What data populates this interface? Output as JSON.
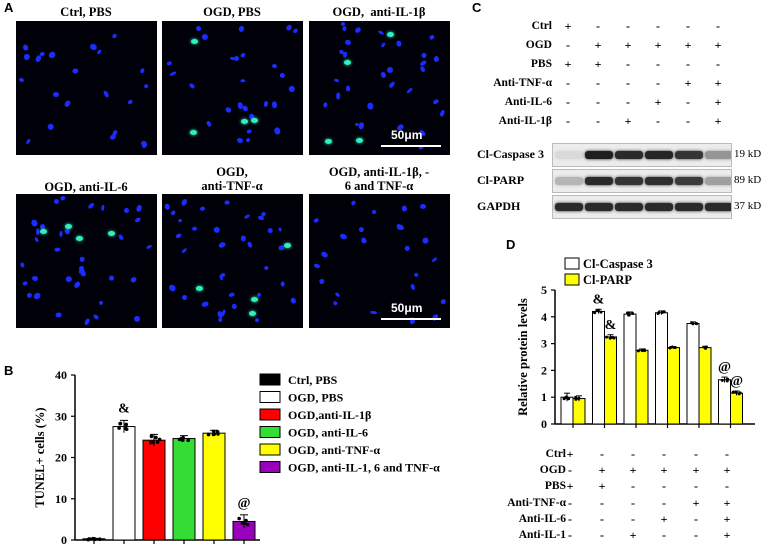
{
  "panels": {
    "A": {
      "letter": "A",
      "images": [
        {
          "title": "Ctrl, PBS",
          "green": 0,
          "blue": 22,
          "seed": 3
        },
        {
          "title": "OGD, PBS",
          "green": 4,
          "blue": 26,
          "seed": 11
        },
        {
          "title": "OGD,  anti-IL-1β",
          "green": 4,
          "blue": 30,
          "seed": 19,
          "scale": "50μm"
        },
        {
          "title": "OGD, anti-IL-6",
          "green": 4,
          "blue": 34,
          "seed": 27
        },
        {
          "title": "OGD,\nanti-TNF-α",
          "green": 4,
          "blue": 34,
          "seed": 35
        },
        {
          "title": "OGD, anti-IL-1β, -\n6 and TNF-α",
          "green": 0,
          "blue": 24,
          "seed": 43,
          "scale": "50μm"
        }
      ]
    },
    "B": {
      "letter": "B"
    },
    "C": {
      "letter": "C",
      "rows": [
        {
          "label": "Ctrl",
          "signs": [
            "+",
            "-",
            "-",
            "-",
            "-",
            "-"
          ]
        },
        {
          "label": "OGD",
          "signs": [
            "-",
            "+",
            "+",
            "+",
            "+",
            "+"
          ]
        },
        {
          "label": "PBS",
          "signs": [
            "+",
            "+",
            "-",
            "-",
            "-",
            "-"
          ]
        },
        {
          "label": "Anti-TNF-α",
          "signs": [
            "-",
            "-",
            "-",
            "-",
            "+",
            "+"
          ]
        },
        {
          "label": "Anti-IL-6",
          "signs": [
            "-",
            "-",
            "-",
            "+",
            "-",
            "+"
          ]
        },
        {
          "label": "Anti-IL-1β",
          "signs": [
            "-",
            "-",
            "+",
            "-",
            "-",
            "+"
          ]
        }
      ],
      "blots": [
        {
          "label": "Cl-Caspase 3",
          "size": "19 kD",
          "intensity": [
            0.08,
            0.95,
            0.9,
            0.92,
            0.85,
            0.4
          ]
        },
        {
          "label": "Cl-PARP",
          "size": "89 kD",
          "intensity": [
            0.25,
            0.9,
            0.85,
            0.88,
            0.82,
            0.35
          ]
        },
        {
          "label": "GAPDH",
          "size": "37 kD",
          "intensity": [
            0.9,
            0.9,
            0.9,
            0.9,
            0.9,
            0.9
          ]
        }
      ]
    },
    "D": {
      "letter": "D",
      "rows": [
        {
          "label": "Ctrl",
          "signs": [
            "+",
            "-",
            "-",
            "-",
            "-",
            "-"
          ]
        },
        {
          "label": "OGD",
          "signs": [
            "-",
            "+",
            "+",
            "+",
            "+",
            "+"
          ]
        },
        {
          "label": "PBS",
          "signs": [
            "+",
            "+",
            "-",
            "-",
            "-",
            "-"
          ]
        },
        {
          "label": "Anti-TNF-α",
          "signs": [
            "-",
            "-",
            "-",
            "-",
            "+",
            "+"
          ]
        },
        {
          "label": "Anti-IL-6",
          "signs": [
            "-",
            "-",
            "-",
            "+",
            "-",
            "+"
          ]
        },
        {
          "label": "Anti-IL-1",
          "signs": [
            "-",
            "-",
            "+",
            "-",
            "-",
            "+"
          ]
        }
      ]
    }
  },
  "chart_data": [
    {
      "type": "bar",
      "ylabel": "TUNEL+ cells (%)",
      "ylim": [
        0,
        40
      ],
      "yticks": [
        0,
        10,
        20,
        30,
        40
      ],
      "categories": [
        "Ctrl, PBS",
        "OGD, PBS",
        "OGD,anti-IL-1β",
        "OGD, anti-IL-6",
        "OGD, anti-TNF-α",
        "OGD, anti-IL-1, 6 and TNF-α"
      ],
      "values": [
        0.2,
        27.5,
        24.2,
        24.6,
        25.9,
        4.5
      ],
      "errors": [
        0.2,
        1.5,
        1.4,
        0.7,
        0.7,
        1.6
      ],
      "colors": [
        "#000000",
        "#ffffff",
        "#ff0000",
        "#33dd33",
        "#ffff00",
        "#9900bb"
      ],
      "annotations": [
        {
          "index": 1,
          "text": "&"
        },
        {
          "index": 5,
          "text": "@"
        }
      ],
      "legend": [
        "Ctrl, PBS",
        "OGD, PBS",
        "OGD,anti-IL-1β",
        "OGD, anti-IL-6",
        "OGD, anti-TNF-α",
        "OGD, anti-IL-1, 6 and TNF-α"
      ],
      "legend_position": "right"
    },
    {
      "type": "bar",
      "ylabel": "Relative protein levels",
      "ylim": [
        0,
        5
      ],
      "yticks": [
        0,
        1,
        2,
        3,
        4,
        5
      ],
      "groups": 6,
      "series": [
        {
          "name": "Cl-Caspase 3",
          "color": "#ffffff",
          "values": [
            1.0,
            4.2,
            4.1,
            4.15,
            3.75,
            1.65
          ],
          "errors": [
            0.15,
            0.08,
            0.08,
            0.07,
            0.06,
            0.1
          ]
        },
        {
          "name": "Cl-PARP",
          "color": "#ffff00",
          "values": [
            0.95,
            3.25,
            2.75,
            2.85,
            2.85,
            1.15
          ],
          "errors": [
            0.1,
            0.08,
            0.05,
            0.04,
            0.05,
            0.08
          ]
        }
      ],
      "annotations": [
        {
          "group": 1,
          "series": 0,
          "text": "&"
        },
        {
          "group": 1,
          "series": 1,
          "text": "&"
        },
        {
          "group": 5,
          "series": 0,
          "text": "@"
        },
        {
          "group": 5,
          "series": 1,
          "text": "@"
        }
      ],
      "legend_position": "top-left"
    }
  ]
}
